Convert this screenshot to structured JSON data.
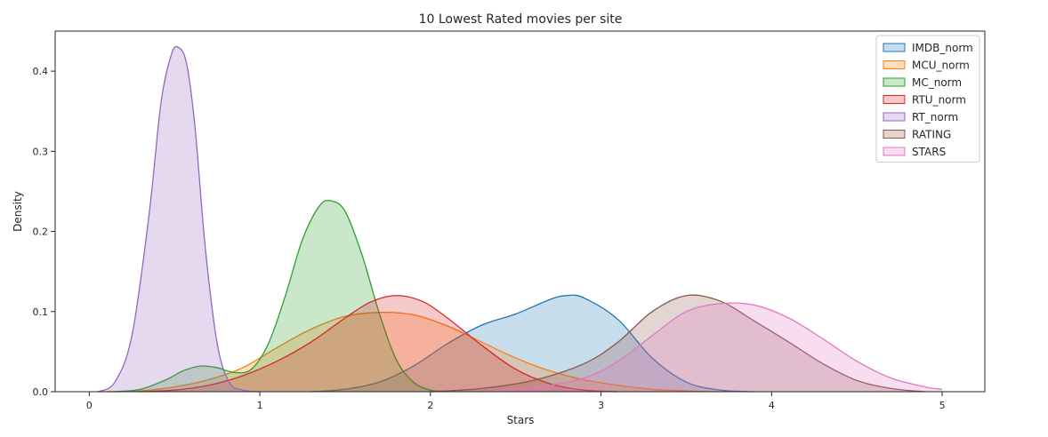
{
  "chart_data": {
    "type": "area",
    "title": "10 Lowest Rated movies per site",
    "xlabel": "Stars",
    "ylabel": "Density",
    "xlim": [
      -0.2,
      5.25
    ],
    "ylim": [
      0,
      0.45
    ],
    "xticks": [
      0,
      1,
      2,
      3,
      4,
      5
    ],
    "yticks": [
      0.0,
      0.1,
      0.2,
      0.3,
      0.4
    ],
    "xtick_labels": [
      "0",
      "1",
      "2",
      "3",
      "4",
      "5"
    ],
    "ytick_labels": [
      "0.0",
      "0.1",
      "0.2",
      "0.3",
      "0.4"
    ],
    "grid": false,
    "legend": "top-right",
    "series": [
      {
        "name": "IMDB_norm",
        "color": "#1f77b4",
        "x": [
          1.3,
          1.5,
          1.7,
          1.9,
          2.1,
          2.3,
          2.5,
          2.7,
          2.8,
          2.9,
          3.1,
          3.3,
          3.5,
          3.7,
          3.9
        ],
        "y": [
          0.0,
          0.003,
          0.012,
          0.032,
          0.06,
          0.083,
          0.097,
          0.115,
          0.12,
          0.117,
          0.09,
          0.042,
          0.012,
          0.002,
          0.0
        ]
      },
      {
        "name": "MCU_norm",
        "color": "#ff7f0e",
        "x": [
          0.1,
          0.3,
          0.5,
          0.7,
          0.9,
          1.1,
          1.3,
          1.5,
          1.7,
          1.9,
          2.1,
          2.3,
          2.5,
          2.7,
          2.9,
          3.1,
          3.3,
          3.5,
          3.7
        ],
        "y": [
          0.0,
          0.001,
          0.006,
          0.015,
          0.03,
          0.055,
          0.078,
          0.094,
          0.099,
          0.096,
          0.082,
          0.062,
          0.042,
          0.026,
          0.015,
          0.008,
          0.003,
          0.001,
          0.0
        ]
      },
      {
        "name": "MC_norm",
        "color": "#2ca02c",
        "x": [
          0.15,
          0.3,
          0.45,
          0.55,
          0.65,
          0.75,
          0.85,
          0.95,
          1.05,
          1.15,
          1.25,
          1.35,
          1.42,
          1.5,
          1.6,
          1.7,
          1.8,
          1.9,
          2.0,
          2.1
        ],
        "y": [
          0.0,
          0.003,
          0.015,
          0.026,
          0.032,
          0.03,
          0.024,
          0.028,
          0.06,
          0.12,
          0.19,
          0.232,
          0.238,
          0.225,
          0.17,
          0.098,
          0.04,
          0.012,
          0.002,
          0.0
        ]
      },
      {
        "name": "RTU_norm",
        "color": "#d62728",
        "x": [
          0.3,
          0.5,
          0.7,
          0.9,
          1.1,
          1.3,
          1.5,
          1.65,
          1.8,
          1.95,
          2.1,
          2.3,
          2.5,
          2.7,
          2.9,
          3.1
        ],
        "y": [
          0.0,
          0.002,
          0.008,
          0.02,
          0.038,
          0.062,
          0.092,
          0.112,
          0.12,
          0.113,
          0.092,
          0.058,
          0.028,
          0.01,
          0.002,
          0.0
        ]
      },
      {
        "name": "RT_norm",
        "color": "#9467bd",
        "x": [
          0.05,
          0.15,
          0.25,
          0.35,
          0.42,
          0.48,
          0.52,
          0.57,
          0.62,
          0.68,
          0.75,
          0.82,
          0.9,
          1.0
        ],
        "y": [
          0.0,
          0.012,
          0.07,
          0.22,
          0.36,
          0.42,
          0.43,
          0.41,
          0.33,
          0.18,
          0.06,
          0.012,
          0.002,
          0.0
        ]
      },
      {
        "name": "RATING",
        "color": "#8c564b",
        "x": [
          2.0,
          2.3,
          2.6,
          2.9,
          3.1,
          3.3,
          3.5,
          3.7,
          3.9,
          4.1,
          4.3,
          4.5,
          4.7,
          4.9
        ],
        "y": [
          0.0,
          0.004,
          0.014,
          0.035,
          0.062,
          0.1,
          0.12,
          0.113,
          0.088,
          0.062,
          0.035,
          0.014,
          0.004,
          0.0
        ]
      },
      {
        "name": "STARS",
        "color": "#e377c2",
        "x": [
          2.3,
          2.6,
          2.9,
          3.1,
          3.3,
          3.5,
          3.7,
          3.9,
          4.1,
          4.3,
          4.5,
          4.7,
          4.9,
          5.0
        ],
        "y": [
          0.0,
          0.005,
          0.017,
          0.038,
          0.07,
          0.1,
          0.11,
          0.108,
          0.092,
          0.066,
          0.038,
          0.017,
          0.006,
          0.003
        ]
      }
    ]
  }
}
